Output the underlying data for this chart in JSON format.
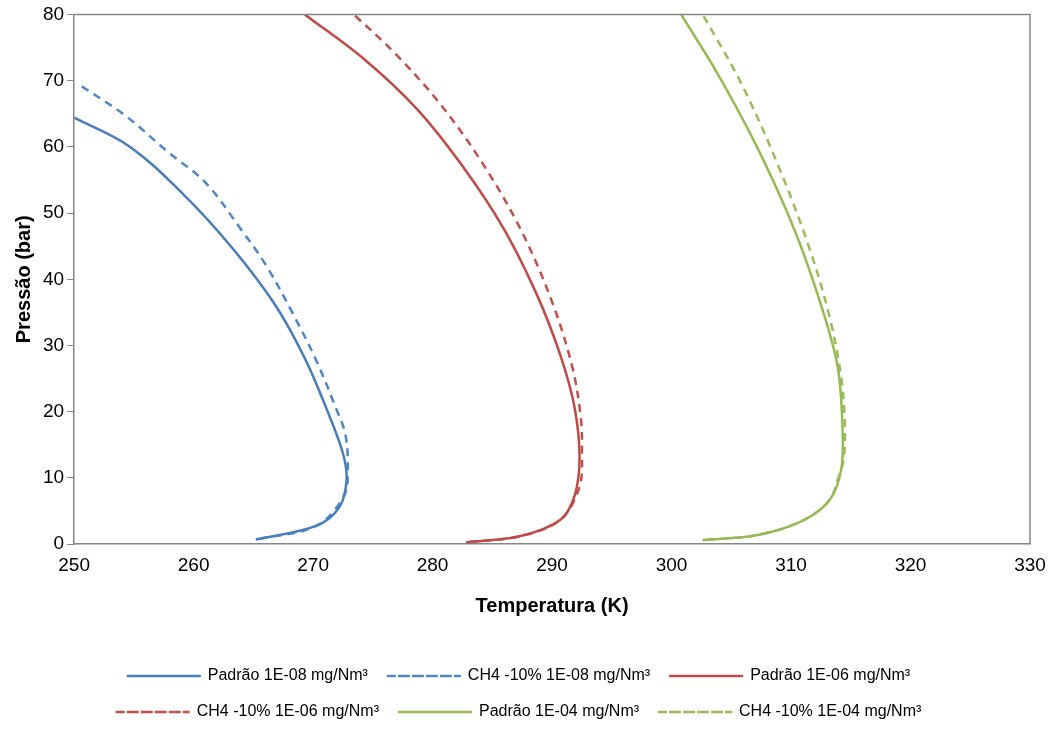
{
  "chart_data": {
    "type": "line",
    "xlabel": "Temperatura (K)",
    "ylabel": "Pressão (bar)",
    "xlim": [
      250,
      330
    ],
    "xticks": [
      250,
      260,
      270,
      280,
      290,
      300,
      310,
      320,
      330
    ],
    "ylim": [
      0,
      80
    ],
    "yticks": [
      0,
      10,
      20,
      30,
      40,
      50,
      60,
      70,
      80
    ],
    "grid": false,
    "legend": "bottom",
    "marker": "none",
    "series": [
      {
        "name": "Padrão 1E-08 mg/Nm³",
        "color": "#4a7ebb",
        "line_style": "solid",
        "x": [
          265.2,
          270.3,
          272.2,
          272.8,
          272.5,
          271.2,
          269.3,
          266.8,
          263.2,
          259.1,
          254.6,
          250
        ],
        "values": [
          0.7,
          2.8,
          5.6,
          9.7,
          13.7,
          20.1,
          28.1,
          36.2,
          44.8,
          52.9,
          60.1,
          64.4
        ]
      },
      {
        "name": "CH4 -10% 1E-08 mg/Nm³",
        "color": "#4f86c6",
        "line_style": "dashed",
        "x": [
          265.2,
          270.3,
          272.6,
          272.9,
          272.7,
          271.9,
          270.3,
          268.4,
          266.1,
          263.9,
          261.0,
          257.8,
          254.3,
          250.5
        ],
        "values": [
          0.7,
          2.8,
          7.4,
          11.4,
          16.6,
          20.6,
          27.6,
          34.5,
          42.0,
          47.7,
          54.6,
          59.3,
          64.7,
          69.3
        ]
      },
      {
        "name": "Padrão 1E-06 mg/Nm³",
        "color": "#be4b48",
        "line_style": "solid",
        "x": [
          282.8,
          287.3,
          290.7,
          291.9,
          292.3,
          291.9,
          290.7,
          288.7,
          285.9,
          282.5,
          278.7,
          274.3,
          269.3
        ],
        "values": [
          0.3,
          1.2,
          3.7,
          7.4,
          13.0,
          20.5,
          28.5,
          37.8,
          47.8,
          57.1,
          65.7,
          73.2,
          80
        ]
      },
      {
        "name": "CH4 -10% 1E-06 mg/Nm³",
        "color": "#c0504d",
        "line_style": "dashed",
        "x": [
          282.8,
          287.3,
          290.7,
          292.3,
          292.5,
          292.4,
          291.7,
          290.0,
          287.3,
          283.9,
          280.4,
          276.7,
          273.4
        ],
        "values": [
          0.3,
          1.2,
          3.7,
          8.7,
          14.3,
          19.2,
          26.7,
          36.6,
          47.8,
          58.3,
          67.0,
          74.4,
          80
        ]
      },
      {
        "name": "Padrão 1E-04 mg/Nm³",
        "color": "#98b954",
        "line_style": "solid",
        "x": [
          302.6,
          307.2,
          310.9,
          313.2,
          314.2,
          314.3,
          313.9,
          312.6,
          310.3,
          307.2,
          303.8,
          300.8
        ],
        "values": [
          0.6,
          1.4,
          3.5,
          6.6,
          11.3,
          18.0,
          26.8,
          35.6,
          47.4,
          59.8,
          71.2,
          80
        ]
      },
      {
        "name": "CH4 -10% 1E-04 mg/Nm³",
        "color": "#9bbb59",
        "line_style": "dashed",
        "x": [
          302.6,
          307.2,
          310.9,
          313.2,
          313.9,
          314.4,
          314.5,
          314.2,
          313.2,
          311.5,
          308.9,
          305.8,
          302.6
        ],
        "values": [
          0.6,
          1.4,
          3.5,
          6.6,
          9.7,
          12.8,
          18.0,
          25.2,
          34.5,
          44.9,
          57.3,
          69.7,
          80
        ]
      }
    ]
  }
}
